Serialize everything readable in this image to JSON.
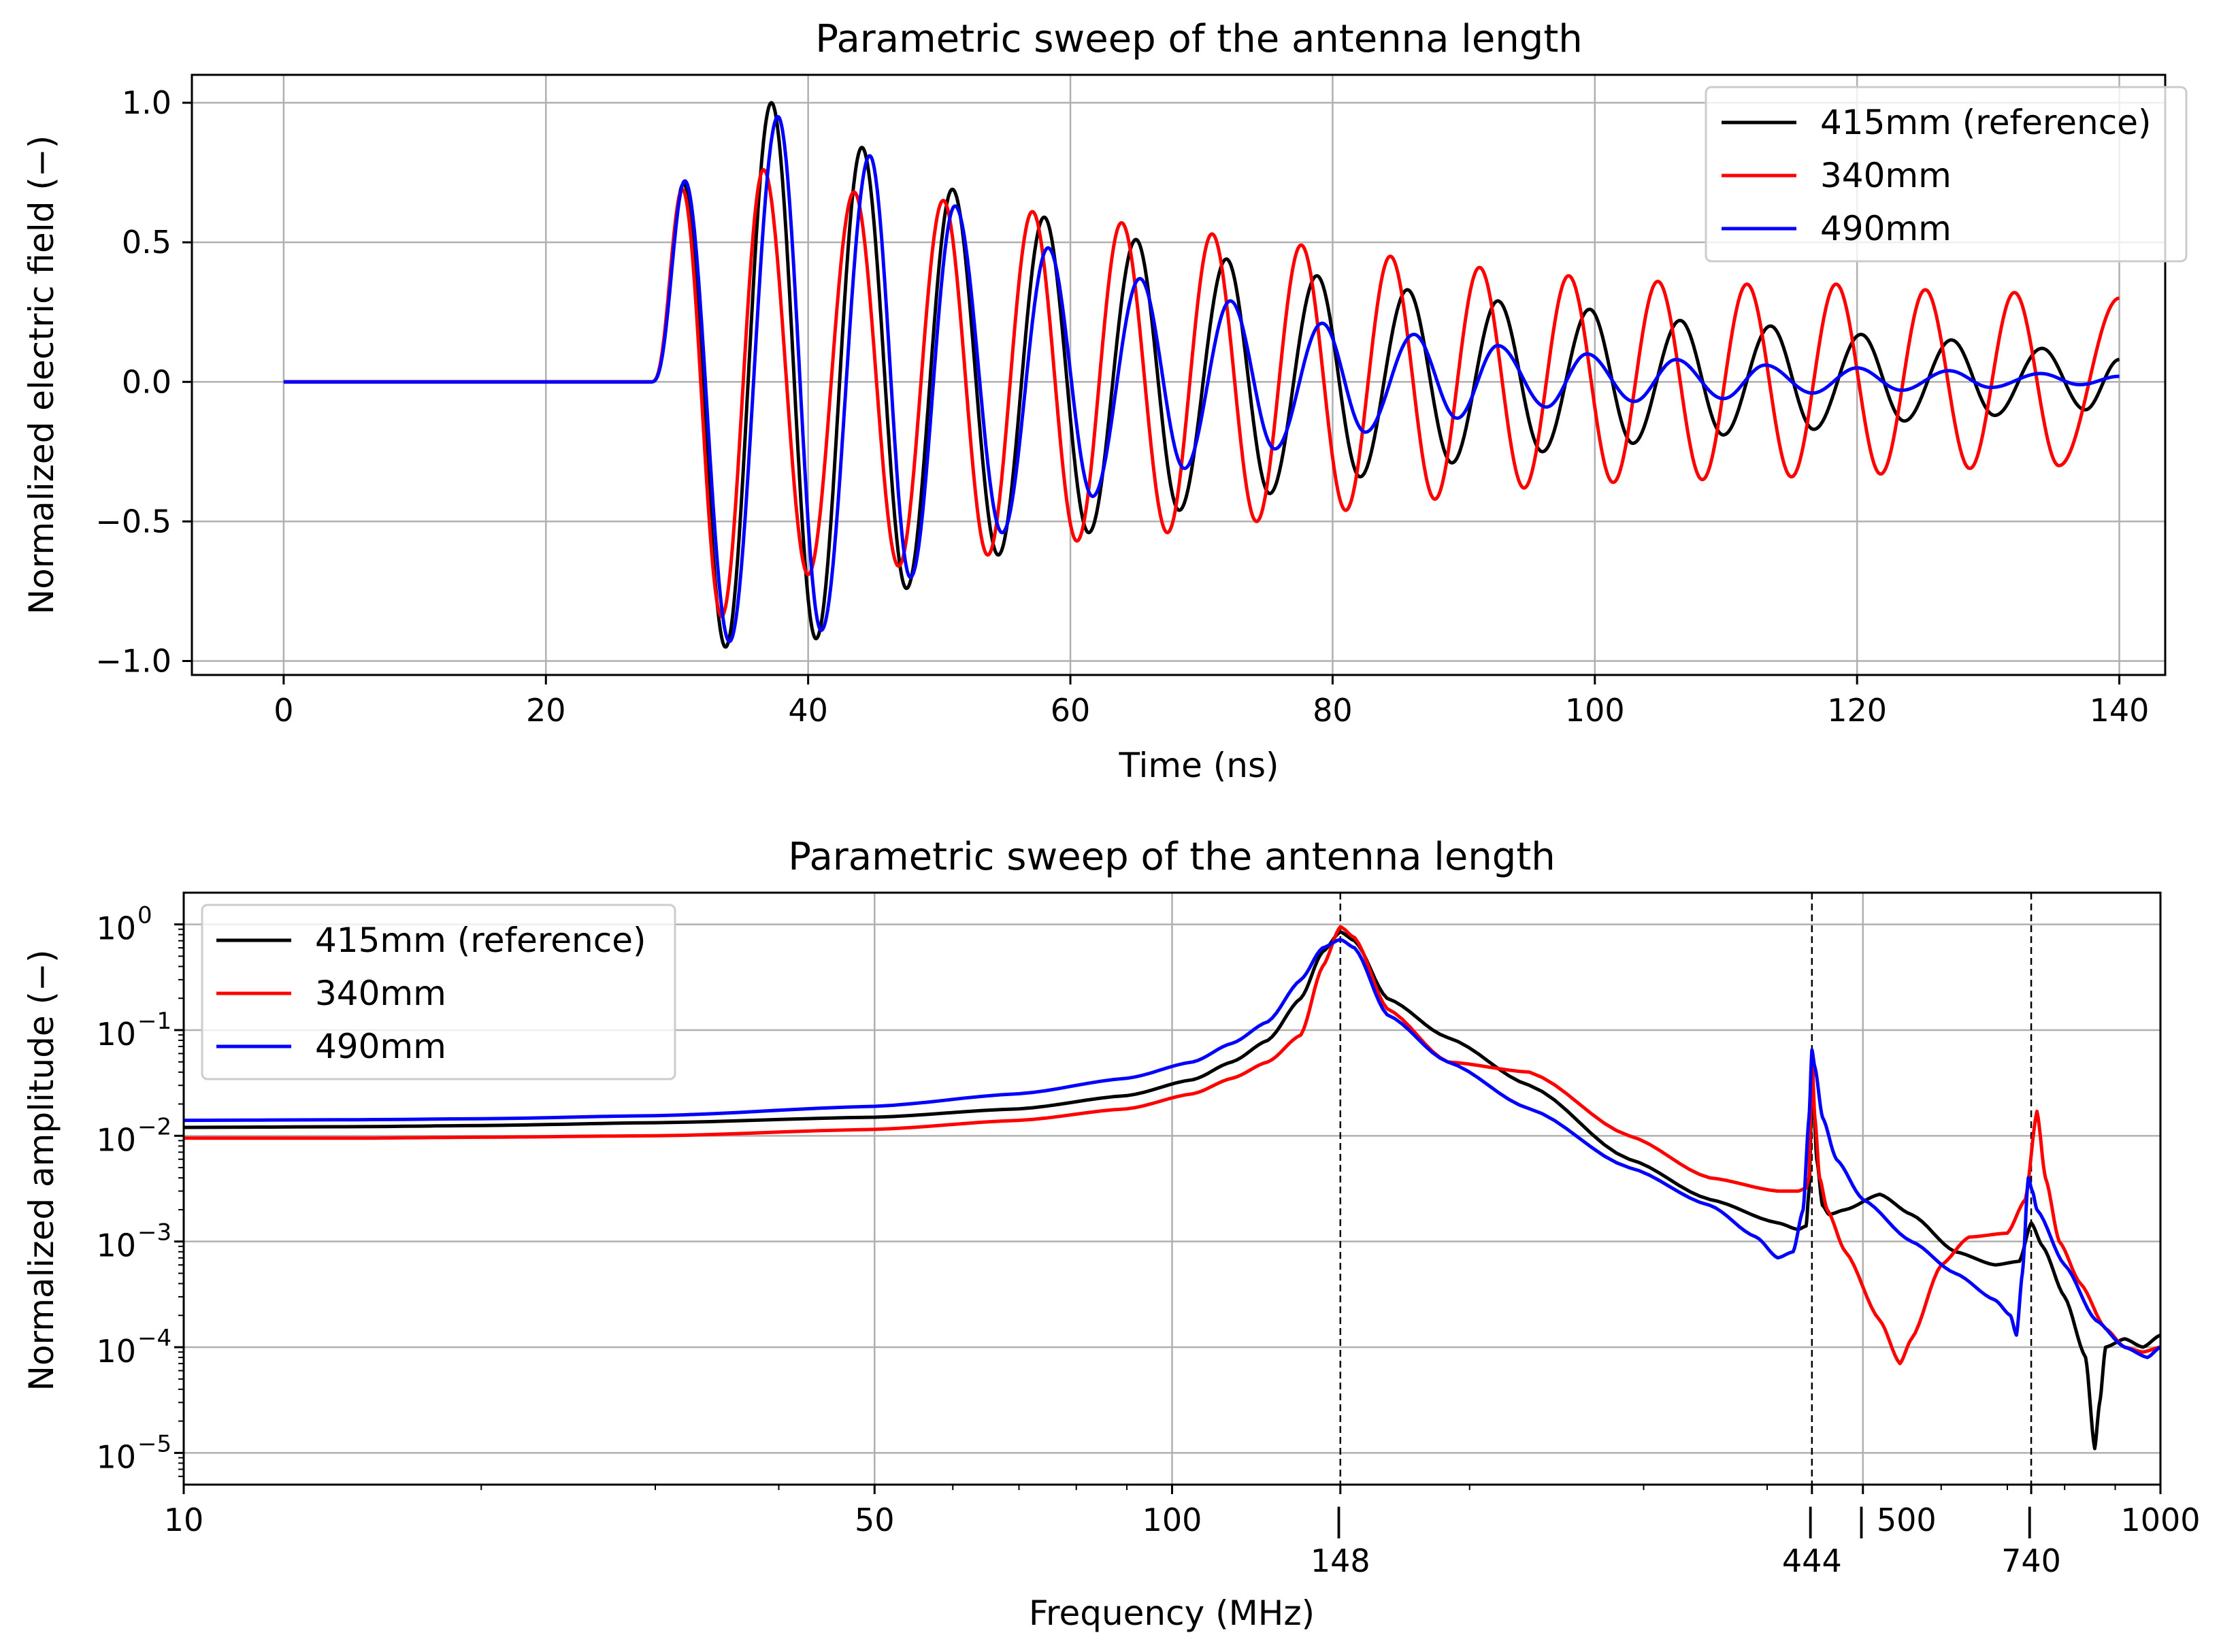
{
  "colors": {
    "reference": "#000000",
    "short": "#ff0000",
    "long": "#0000ff",
    "grid": "#b0b0b0"
  },
  "chart_data": [
    {
      "type": "line",
      "title": "Parametric sweep of the antenna length",
      "xlabel": "Time (ns)",
      "ylabel": "Normalized electric field (−)",
      "xlim": [
        -7,
        143.5
      ],
      "ylim": [
        -1.05,
        1.1
      ],
      "grid": true,
      "legend_position": "top-right",
      "xticks": [
        0,
        20,
        40,
        60,
        80,
        100,
        120,
        140
      ],
      "xtick_labels": [
        "0",
        "20",
        "40",
        "60",
        "80",
        "100",
        "120",
        "140"
      ],
      "yticks": [
        1.0,
        0.5,
        0.0,
        -0.5,
        -1.0
      ],
      "ytick_labels": [
        "1.0",
        "0.5",
        "0.0",
        "−0.5",
        "−1.0"
      ],
      "series": [
        {
          "name": "415mm (reference)",
          "color": "#000000",
          "onset_ns": 28,
          "period_ns": 6.95,
          "first_peak_ns": 30.5,
          "peak_times_ns": [
            30.5,
            37.2,
            44.1,
            51.0,
            58.0,
            65.0,
            71.9,
            78.8,
            85.7,
            92.6,
            99.6,
            106.5,
            113.4,
            120.3,
            127.2,
            134.1
          ],
          "peak_values": [
            0.71,
            1.0,
            0.84,
            0.69,
            0.59,
            0.51,
            0.44,
            0.38,
            0.33,
            0.29,
            0.26,
            0.22,
            0.2,
            0.17,
            0.15,
            0.12
          ],
          "trough_times_ns": [
            33.7,
            40.6,
            47.5,
            54.5,
            61.4,
            68.3,
            75.2,
            82.1,
            89.1,
            96.0,
            102.9,
            109.8,
            116.7,
            123.6,
            130.5,
            137.4
          ],
          "trough_values": [
            -0.95,
            -0.92,
            -0.74,
            -0.62,
            -0.54,
            -0.46,
            -0.4,
            -0.34,
            -0.29,
            -0.25,
            -0.22,
            -0.19,
            -0.17,
            -0.14,
            -0.12,
            -0.1
          ],
          "end_value": 0.08
        },
        {
          "name": "340mm",
          "color": "#ff0000",
          "onset_ns": 28,
          "period_ns": 6.8,
          "first_peak_ns": 30.4,
          "peak_times_ns": [
            30.4,
            36.6,
            43.5,
            50.3,
            57.1,
            63.9,
            70.8,
            77.6,
            84.4,
            91.2,
            98.0,
            104.8,
            111.6,
            118.4,
            125.2,
            132.0
          ],
          "peak_values": [
            0.69,
            0.76,
            0.68,
            0.65,
            0.61,
            0.57,
            0.53,
            0.49,
            0.45,
            0.41,
            0.38,
            0.36,
            0.35,
            0.35,
            0.33,
            0.32
          ],
          "trough_times_ns": [
            33.4,
            40.0,
            46.9,
            53.7,
            60.5,
            67.4,
            74.2,
            81.0,
            87.8,
            94.6,
            101.4,
            108.2,
            115.0,
            121.8,
            128.6,
            135.4
          ],
          "trough_values": [
            -0.84,
            -0.69,
            -0.66,
            -0.62,
            -0.57,
            -0.54,
            -0.5,
            -0.46,
            -0.42,
            -0.38,
            -0.36,
            -0.35,
            -0.34,
            -0.33,
            -0.31,
            -0.3
          ],
          "end_value": 0.3
        },
        {
          "name": "490mm",
          "color": "#0000ff",
          "onset_ns": 28,
          "period_ns": 7.05,
          "first_peak_ns": 30.6,
          "peak_times_ns": [
            30.6,
            37.7,
            44.7,
            51.2,
            58.3,
            65.3,
            72.2,
            79.2,
            86.2,
            92.6,
            99.4,
            106.2,
            113.0,
            120.0,
            127.0,
            134.0
          ],
          "peak_values": [
            0.72,
            0.95,
            0.81,
            0.63,
            0.48,
            0.37,
            0.29,
            0.21,
            0.17,
            0.13,
            0.1,
            0.08,
            0.06,
            0.05,
            0.04,
            0.03
          ],
          "trough_times_ns": [
            34.0,
            41.0,
            47.8,
            54.8,
            61.7,
            68.7,
            75.6,
            82.5,
            89.5,
            96.3,
            103.0,
            109.8,
            116.6,
            123.4,
            130.2,
            137.0
          ],
          "trough_values": [
            -0.93,
            -0.89,
            -0.7,
            -0.54,
            -0.41,
            -0.31,
            -0.24,
            -0.18,
            -0.13,
            -0.09,
            -0.07,
            -0.06,
            -0.04,
            -0.03,
            -0.02,
            -0.01
          ],
          "end_value": 0.02
        }
      ]
    },
    {
      "type": "line",
      "xscale": "log",
      "yscale": "log",
      "title": "Parametric sweep of the antenna length",
      "xlabel": "Frequency (MHz)",
      "ylabel": "Normalized amplitude (−)",
      "xlim": [
        10,
        1000
      ],
      "ylim_exponent": [
        -5.3,
        0.3
      ],
      "grid": true,
      "legend_position": "top-left",
      "xticks": [
        10,
        50,
        100,
        500,
        1000
      ],
      "xtick_labels": [
        "10",
        "50",
        "100",
        "| 500",
        "1000"
      ],
      "yticks_exponents": [
        0,
        -1,
        -2,
        -3,
        -4,
        -5
      ],
      "ytick_labels": [
        "10",
        "10",
        "10",
        "10",
        "10",
        "10"
      ],
      "ytick_superscripts": [
        "0",
        "−1",
        "−2",
        "−3",
        "−4",
        "−5"
      ],
      "vlines_mhz": [
        148,
        444,
        740
      ],
      "vline_labels": [
        "| 148",
        "| 444",
        "| 740"
      ],
      "series": [
        {
          "name": "415mm (reference)",
          "color": "#000000",
          "freq_mhz": [
            10,
            15,
            20,
            30,
            50,
            70,
            90,
            105,
            115,
            125,
            135,
            142,
            148,
            153,
            165,
            190,
            230,
            290,
            350,
            410,
            430,
            438,
            441,
            444,
            446,
            449,
            455,
            462,
            480,
            520,
            560,
            620,
            680,
            720,
            740,
            760,
            800,
            840,
            858,
            868,
            880,
            920,
            960,
            1000
          ],
          "amplitude": [
            0.012,
            0.0122,
            0.0125,
            0.0133,
            0.015,
            0.018,
            0.024,
            0.034,
            0.05,
            0.08,
            0.2,
            0.55,
            0.85,
            0.7,
            0.2,
            0.085,
            0.03,
            0.006,
            0.0025,
            0.0015,
            0.0013,
            0.0014,
            0.003,
            0.024,
            0.018,
            0.006,
            0.0022,
            0.0018,
            0.002,
            0.0028,
            0.0018,
            0.0008,
            0.0006,
            0.00065,
            0.0015,
            0.0009,
            0.0003,
            8e-05,
            1.1e-05,
            3e-05,
            0.0001,
            0.00012,
            0.0001,
            0.00013
          ]
        },
        {
          "name": "340mm",
          "color": "#ff0000",
          "freq_mhz": [
            10,
            15,
            20,
            30,
            50,
            70,
            90,
            105,
            115,
            125,
            135,
            142,
            148,
            153,
            165,
            190,
            230,
            290,
            350,
            410,
            430,
            438,
            441,
            444,
            447,
            452,
            460,
            480,
            520,
            545,
            560,
            600,
            640,
            700,
            730,
            750,
            765,
            790,
            830,
            880,
            920,
            960,
            1000
          ],
          "amplitude": [
            0.0095,
            0.0095,
            0.0097,
            0.01,
            0.0115,
            0.014,
            0.018,
            0.025,
            0.035,
            0.05,
            0.09,
            0.4,
            0.95,
            0.75,
            0.16,
            0.05,
            0.04,
            0.01,
            0.004,
            0.003,
            0.003,
            0.0032,
            0.004,
            0.06,
            0.015,
            0.004,
            0.002,
            0.0008,
            0.00018,
            7e-05,
            0.00012,
            0.0006,
            0.0011,
            0.0012,
            0.0025,
            0.017,
            0.004,
            0.001,
            0.0004,
            0.00015,
            0.0001,
            9e-05,
            0.0001
          ]
        },
        {
          "name": "490mm",
          "color": "#0000ff",
          "freq_mhz": [
            10,
            15,
            20,
            30,
            50,
            70,
            90,
            105,
            115,
            125,
            135,
            142,
            148,
            153,
            165,
            190,
            230,
            290,
            350,
            390,
            410,
            425,
            435,
            441,
            444,
            447,
            455,
            470,
            500,
            560,
            620,
            680,
            705,
            715,
            725,
            735,
            742,
            750,
            800,
            860,
            920,
            970,
            1000
          ],
          "amplitude": [
            0.014,
            0.0142,
            0.0145,
            0.0155,
            0.019,
            0.025,
            0.035,
            0.05,
            0.075,
            0.12,
            0.3,
            0.6,
            0.72,
            0.6,
            0.14,
            0.05,
            0.018,
            0.005,
            0.0022,
            0.0011,
            0.0007,
            0.0008,
            0.002,
            0.015,
            0.065,
            0.045,
            0.015,
            0.006,
            0.0025,
            0.001,
            0.0005,
            0.00028,
            0.0002,
            0.00013,
            0.0005,
            0.004,
            0.003,
            0.002,
            0.0006,
            0.00018,
            0.0001,
            8e-05,
            0.0001
          ]
        }
      ]
    }
  ]
}
